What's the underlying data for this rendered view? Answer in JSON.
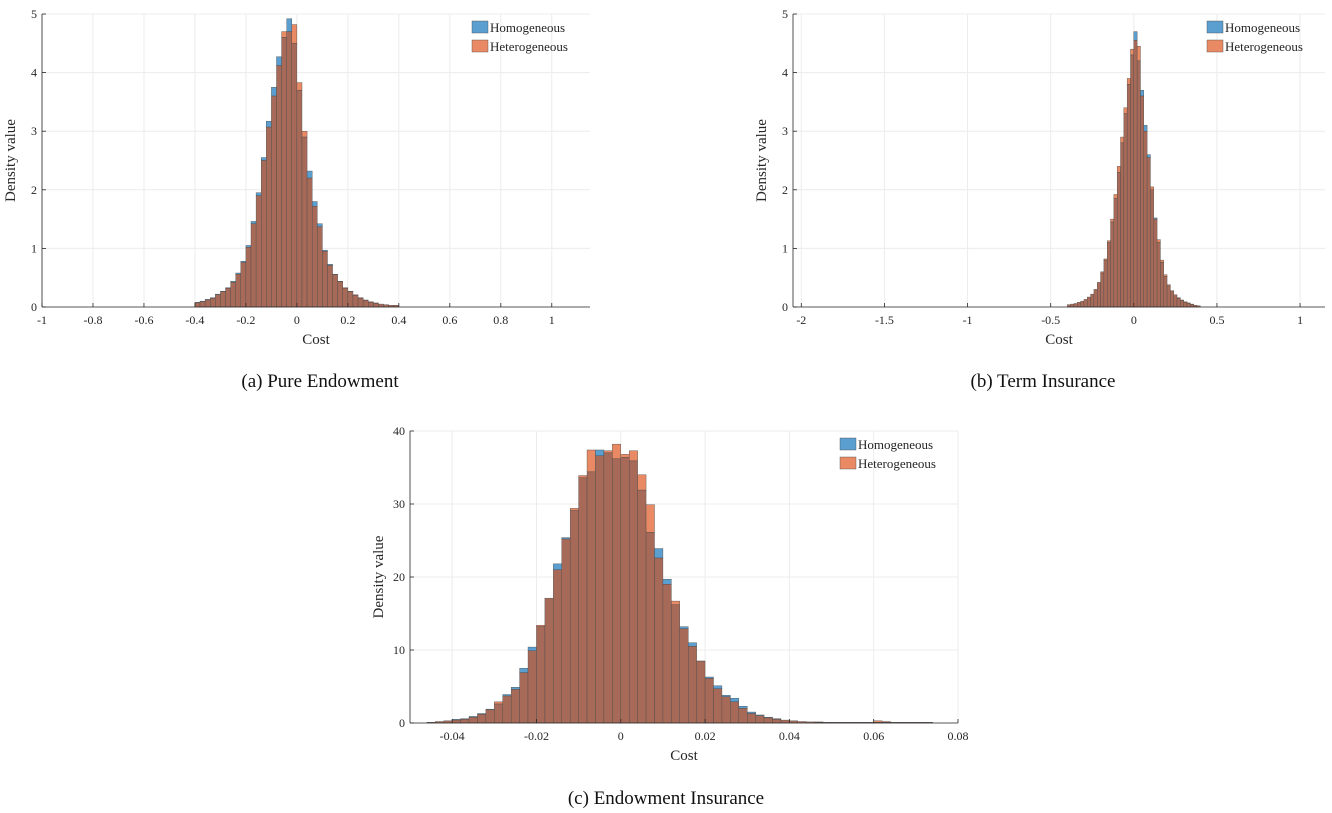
{
  "colors": {
    "homogeneous": "#5a9fd0",
    "heterogeneous": "#e98a64",
    "overlap": "#a86a58",
    "edge": "#4a4a4a",
    "grid": "#ececec"
  },
  "captions": {
    "a": "(a) Pure Endowment",
    "b": "(b) Term Insurance",
    "c": "(c) Endowment Insurance"
  },
  "chart_data": [
    {
      "type": "bar",
      "title": "",
      "xlabel": "Cost",
      "ylabel": "Density value",
      "xlim": [
        -1.0,
        1.15
      ],
      "ylim": [
        0,
        5
      ],
      "xticks": [
        -1,
        -0.8,
        -0.6,
        -0.4,
        -0.2,
        0,
        0.2,
        0.4,
        0.6,
        0.8,
        1
      ],
      "xtick_labels": [
        "-1",
        "-0.8",
        "-0.6",
        "-0.4",
        "-0.2",
        "0",
        "0.2",
        "0.4",
        "0.6",
        "0.8",
        "1"
      ],
      "yticks": [
        0,
        1,
        2,
        3,
        4,
        5
      ],
      "ytick_labels": [
        "0",
        "1",
        "2",
        "3",
        "4",
        "5"
      ],
      "grid": true,
      "legend_position": "top-right",
      "bin_edges_start": -0.4,
      "bin_width": 0.02,
      "series": [
        {
          "name": "Homogeneous",
          "values": [
            0.08,
            0.1,
            0.13,
            0.16,
            0.22,
            0.27,
            0.33,
            0.44,
            0.58,
            0.78,
            1.05,
            1.46,
            1.95,
            2.55,
            3.17,
            3.75,
            4.27,
            4.6,
            4.92,
            4.5,
            3.7,
            2.9,
            2.32,
            1.8,
            1.42,
            0.97,
            0.73,
            0.56,
            0.44,
            0.32,
            0.26,
            0.2,
            0.15,
            0.11,
            0.08,
            0.06,
            0.05,
            0.04,
            0.03,
            0.03
          ]
        },
        {
          "name": "Heterogeneous",
          "values": [
            0.07,
            0.09,
            0.12,
            0.15,
            0.21,
            0.26,
            0.32,
            0.42,
            0.56,
            0.76,
            1.02,
            1.42,
            1.9,
            2.5,
            3.07,
            3.6,
            4.12,
            4.7,
            4.7,
            4.82,
            3.83,
            3.0,
            2.2,
            1.72,
            1.37,
            0.95,
            0.71,
            0.55,
            0.43,
            0.33,
            0.27,
            0.21,
            0.16,
            0.12,
            0.09,
            0.07,
            0.05,
            0.04,
            0.03,
            0.03
          ]
        }
      ]
    },
    {
      "type": "bar",
      "title": "",
      "xlabel": "Cost",
      "ylabel": "Density value",
      "xlim": [
        -2.05,
        1.15
      ],
      "ylim": [
        0,
        5
      ],
      "xticks": [
        -2,
        -1.5,
        -1,
        -0.5,
        0,
        0.5,
        1
      ],
      "xtick_labels": [
        "-2",
        "-1.5",
        "-1",
        "-0.5",
        "0",
        "0.5",
        "1"
      ],
      "yticks": [
        0,
        1,
        2,
        3,
        4,
        5
      ],
      "ytick_labels": [
        "0",
        "1",
        "2",
        "3",
        "4",
        "5"
      ],
      "grid": true,
      "legend_position": "top-right",
      "bin_edges_start": -0.4,
      "bin_width": 0.02,
      "series": [
        {
          "name": "Homogeneous",
          "values": [
            0.04,
            0.05,
            0.06,
            0.08,
            0.1,
            0.13,
            0.17,
            0.22,
            0.3,
            0.42,
            0.58,
            0.8,
            1.1,
            1.45,
            1.85,
            2.3,
            2.8,
            3.3,
            3.8,
            4.3,
            4.7,
            4.2,
            3.7,
            3.1,
            2.6,
            2.0,
            1.52,
            1.1,
            0.76,
            0.52,
            0.36,
            0.26,
            0.19,
            0.15,
            0.11,
            0.08,
            0.06,
            0.04,
            0.03,
            0.02
          ]
        },
        {
          "name": "Heterogeneous",
          "values": [
            0.04,
            0.05,
            0.06,
            0.08,
            0.1,
            0.13,
            0.17,
            0.22,
            0.3,
            0.42,
            0.6,
            0.82,
            1.13,
            1.5,
            1.92,
            2.4,
            2.9,
            3.4,
            3.9,
            4.4,
            4.55,
            4.45,
            3.6,
            3.0,
            2.55,
            2.05,
            1.5,
            1.15,
            0.8,
            0.55,
            0.38,
            0.28,
            0.21,
            0.16,
            0.12,
            0.09,
            0.07,
            0.05,
            0.03,
            0.02
          ]
        }
      ]
    },
    {
      "type": "bar",
      "title": "",
      "xlabel": "Cost",
      "ylabel": "Density value",
      "xlim": [
        -0.05,
        0.08
      ],
      "ylim": [
        0,
        40
      ],
      "xticks": [
        -0.04,
        -0.02,
        0,
        0.02,
        0.04,
        0.06,
        0.08
      ],
      "xtick_labels": [
        "-0.04",
        "-0.02",
        "0",
        "0.02",
        "0.04",
        "0.06",
        "0.08"
      ],
      "yticks": [
        0,
        10,
        20,
        30,
        40
      ],
      "ytick_labels": [
        "0",
        "10",
        "20",
        "30",
        "40"
      ],
      "grid": true,
      "legend_position": "top-right",
      "bin_edges_start": -0.046,
      "bin_width": 0.002,
      "series": [
        {
          "name": "Homogeneous",
          "values": [
            0.1,
            0.2,
            0.3,
            0.5,
            0.6,
            0.9,
            1.3,
            1.9,
            2.6,
            3.9,
            4.9,
            7.5,
            10.4,
            13.2,
            17.1,
            21.8,
            25.4,
            29.1,
            33.6,
            34.4,
            37.4,
            37.0,
            36.2,
            36.4,
            35.9,
            31.9,
            26.1,
            23.9,
            19.7,
            16.2,
            13.2,
            11.0,
            8.4,
            6.3,
            5.1,
            3.8,
            3.4,
            2.3,
            1.5,
            1.1,
            0.8,
            0.6,
            0.4,
            0.3,
            0.2,
            0.15,
            0.1,
            0.1,
            0.1,
            0.1,
            0.1,
            0.1,
            0.1,
            0.1,
            0.1,
            0.1,
            0.1,
            0.1,
            0.1,
            0.1
          ]
        },
        {
          "name": "Heterogeneous",
          "values": [
            0.1,
            0.2,
            0.3,
            0.4,
            0.5,
            0.8,
            1.2,
            1.8,
            2.9,
            3.7,
            4.6,
            6.9,
            9.9,
            13.4,
            17.1,
            21.0,
            25.2,
            29.4,
            33.9,
            37.4,
            36.6,
            37.3,
            38.2,
            36.8,
            37.3,
            34.0,
            29.9,
            22.6,
            19.0,
            16.7,
            12.9,
            10.5,
            8.5,
            6.1,
            4.7,
            3.6,
            2.9,
            2.0,
            1.3,
            1.0,
            0.7,
            0.5,
            0.4,
            0.3,
            0.2,
            0.15,
            0.15,
            0.1,
            0.1,
            0.1,
            0.1,
            0.1,
            0.1,
            0.3,
            0.2,
            0.1,
            0.1,
            0.1,
            0.1,
            0.1
          ]
        }
      ]
    }
  ]
}
